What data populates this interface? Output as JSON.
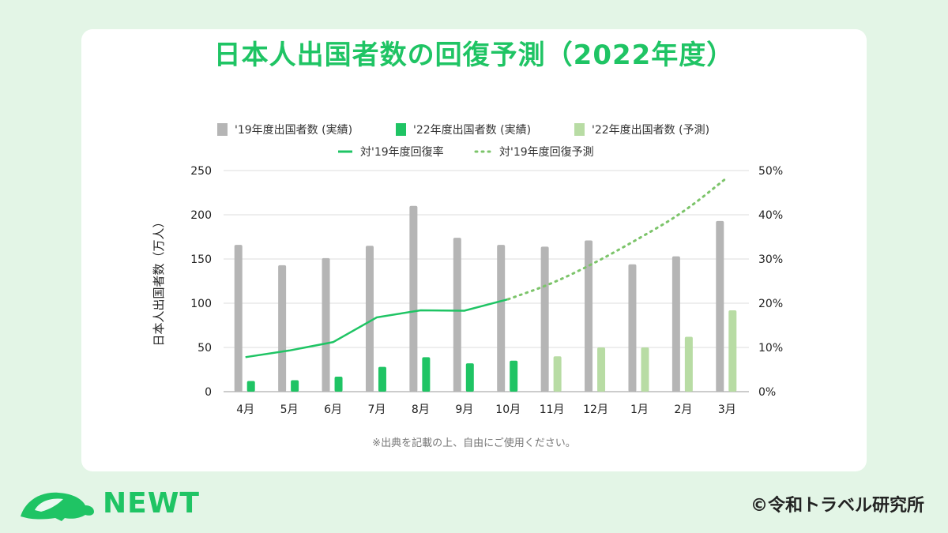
{
  "title": "日本人出国者数の回復予測（2022年度）",
  "note": "※出典を記載の上、自由にご使用ください。",
  "brand": "NEWT",
  "copyright": "©令和トラベル研究所",
  "colors": {
    "gray": "#b5b5b5",
    "green": "#1fc464",
    "light_green": "#b8dca4",
    "line": "#1fc464",
    "dotted": "#7cc46a"
  },
  "chart_data": {
    "type": "bar",
    "categories": [
      "4月",
      "5月",
      "6月",
      "7月",
      "8月",
      "9月",
      "10月",
      "11月",
      "12月",
      "1月",
      "2月",
      "3月"
    ],
    "series": [
      {
        "name": "'19年度出国者数 (実績)",
        "kind": "bar",
        "values": [
          166,
          143,
          151,
          165,
          210,
          174,
          166,
          164,
          171,
          144,
          153,
          193
        ]
      },
      {
        "name": "'22年度出国者数 (実績)",
        "kind": "bar",
        "values": [
          12,
          13,
          17,
          28,
          39,
          32,
          35,
          null,
          null,
          null,
          null,
          null
        ]
      },
      {
        "name": "'22年度出国者数 (予測)",
        "kind": "bar",
        "values": [
          null,
          null,
          null,
          null,
          null,
          null,
          null,
          40,
          50,
          50,
          62,
          92
        ]
      },
      {
        "name": "対'19年度回復率",
        "kind": "line",
        "axis": "right",
        "values": [
          7.8,
          9.3,
          11.2,
          16.8,
          18.4,
          18.3,
          20.9,
          null,
          null,
          null,
          null,
          null
        ]
      },
      {
        "name": "対'19年度回復予測",
        "kind": "dotted-line",
        "axis": "right",
        "values": [
          null,
          null,
          null,
          null,
          null,
          null,
          20.9,
          24.4,
          29.2,
          34.7,
          40.5,
          48.4
        ]
      }
    ],
    "yleft": {
      "label": "日本人出国者数（万人）",
      "min": 0,
      "max": 250,
      "ticks": [
        "0",
        "50",
        "100",
        "150",
        "200",
        "250"
      ]
    },
    "yright": {
      "min": 0,
      "max": 50,
      "ticks": [
        "0%",
        "10%",
        "20%",
        "30%",
        "40%",
        "50%"
      ]
    },
    "legend_position": "top"
  }
}
